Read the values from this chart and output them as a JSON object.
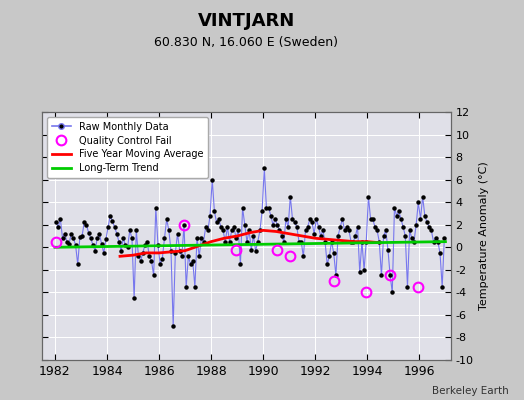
{
  "title": "VINTJARN",
  "subtitle": "60.830 N, 16.060 E (Sweden)",
  "ylabel": "Temperature Anomaly (°C)",
  "credit": "Berkeley Earth",
  "ylim": [
    -10,
    12
  ],
  "yticks": [
    -10,
    -8,
    -6,
    -4,
    -2,
    0,
    2,
    4,
    6,
    8,
    10,
    12
  ],
  "xlim": [
    1981.5,
    1997.2
  ],
  "xticks": [
    1982,
    1984,
    1986,
    1988,
    1990,
    1992,
    1994,
    1996
  ],
  "bg_color": "#c8c8c8",
  "plot_bg_color": "#e0e0e8",
  "grid_color": "white",
  "line_color": "#7777ee",
  "dot_color": "black",
  "ma_color": "red",
  "trend_color": "#00cc00",
  "qc_color": "magenta",
  "raw_data": {
    "times": [
      1982.042,
      1982.125,
      1982.208,
      1982.292,
      1982.375,
      1982.458,
      1982.542,
      1982.625,
      1982.708,
      1982.792,
      1982.875,
      1982.958,
      1983.042,
      1983.125,
      1983.208,
      1983.292,
      1983.375,
      1983.458,
      1983.542,
      1983.625,
      1983.708,
      1983.792,
      1983.875,
      1983.958,
      1984.042,
      1984.125,
      1984.208,
      1984.292,
      1984.375,
      1984.458,
      1984.542,
      1984.625,
      1984.708,
      1984.792,
      1984.875,
      1984.958,
      1985.042,
      1985.125,
      1985.208,
      1985.292,
      1985.375,
      1985.458,
      1985.542,
      1985.625,
      1985.708,
      1985.792,
      1985.875,
      1985.958,
      1986.042,
      1986.125,
      1986.208,
      1986.292,
      1986.375,
      1986.458,
      1986.542,
      1986.625,
      1986.708,
      1986.792,
      1986.875,
      1986.958,
      1987.042,
      1987.125,
      1987.208,
      1987.292,
      1987.375,
      1987.458,
      1987.542,
      1987.625,
      1987.708,
      1987.792,
      1987.875,
      1987.958,
      1988.042,
      1988.125,
      1988.208,
      1988.292,
      1988.375,
      1988.458,
      1988.542,
      1988.625,
      1988.708,
      1988.792,
      1988.875,
      1988.958,
      1989.042,
      1989.125,
      1989.208,
      1989.292,
      1989.375,
      1989.458,
      1989.542,
      1989.625,
      1989.708,
      1989.792,
      1989.875,
      1989.958,
      1990.042,
      1990.125,
      1990.208,
      1990.292,
      1990.375,
      1990.458,
      1990.542,
      1990.625,
      1990.708,
      1990.792,
      1990.875,
      1990.958,
      1991.042,
      1991.125,
      1991.208,
      1991.292,
      1991.375,
      1991.458,
      1991.542,
      1991.625,
      1991.708,
      1991.792,
      1991.875,
      1991.958,
      1992.042,
      1992.125,
      1992.208,
      1992.292,
      1992.375,
      1992.458,
      1992.542,
      1992.625,
      1992.708,
      1992.792,
      1992.875,
      1992.958,
      1993.042,
      1993.125,
      1993.208,
      1993.292,
      1993.375,
      1993.458,
      1993.542,
      1993.625,
      1993.708,
      1993.792,
      1993.875,
      1993.958,
      1994.042,
      1994.125,
      1994.208,
      1994.292,
      1994.375,
      1994.458,
      1994.542,
      1994.625,
      1994.708,
      1994.792,
      1994.875,
      1994.958,
      1995.042,
      1995.125,
      1995.208,
      1995.292,
      1995.375,
      1995.458,
      1995.542,
      1995.625,
      1995.708,
      1995.792,
      1995.875,
      1995.958,
      1996.042,
      1996.125,
      1996.208,
      1996.292,
      1996.375,
      1996.458,
      1996.542,
      1996.625,
      1996.708,
      1996.792,
      1996.875,
      1996.958
    ],
    "values": [
      2.2,
      1.8,
      2.5,
      0.8,
      1.2,
      0.5,
      0.3,
      1.2,
      0.8,
      0.2,
      -1.5,
      0.9,
      1.0,
      2.2,
      2.0,
      1.3,
      0.8,
      0.2,
      -0.3,
      0.8,
      1.2,
      0.3,
      -0.5,
      0.7,
      1.8,
      2.8,
      2.3,
      1.8,
      1.2,
      0.5,
      -0.3,
      0.8,
      0.2,
      0.0,
      1.5,
      0.8,
      -4.5,
      1.5,
      -0.8,
      -1.2,
      -0.5,
      0.2,
      0.5,
      -0.8,
      -1.2,
      -2.5,
      3.5,
      0.2,
      -1.5,
      -1.0,
      0.8,
      2.5,
      1.5,
      -0.3,
      -7.0,
      -0.5,
      1.2,
      -0.3,
      -0.8,
      2.0,
      -3.5,
      -0.8,
      -1.5,
      -1.2,
      -3.5,
      0.8,
      -0.8,
      0.8,
      0.5,
      1.8,
      1.5,
      2.8,
      6.0,
      3.2,
      2.2,
      2.5,
      1.8,
      1.5,
      0.5,
      1.8,
      0.5,
      1.5,
      1.8,
      0.8,
      1.5,
      -1.5,
      3.5,
      2.0,
      0.5,
      1.5,
      -0.2,
      1.0,
      -0.3,
      0.5,
      1.5,
      3.2,
      7.0,
      3.5,
      3.5,
      2.8,
      2.0,
      2.5,
      2.0,
      1.5,
      1.0,
      0.5,
      2.5,
      1.8,
      4.5,
      2.5,
      2.2,
      1.8,
      0.5,
      0.5,
      -0.8,
      1.5,
      1.8,
      2.5,
      2.2,
      1.2,
      2.5,
      1.8,
      1.0,
      1.5,
      0.5,
      -1.5,
      -0.8,
      0.5,
      -0.5,
      -2.5,
      1.0,
      1.8,
      2.5,
      1.5,
      1.8,
      1.5,
      0.5,
      0.5,
      1.0,
      1.8,
      -2.2,
      0.5,
      -2.0,
      0.5,
      4.5,
      2.5,
      2.5,
      1.8,
      1.5,
      0.5,
      -2.5,
      1.0,
      1.5,
      -0.2,
      -2.5,
      -4.0,
      3.5,
      2.8,
      3.2,
      2.5,
      1.8,
      1.0,
      -3.5,
      1.5,
      0.8,
      0.5,
      2.0,
      4.0,
      2.5,
      4.5,
      2.8,
      2.2,
      1.8,
      1.5,
      0.5,
      0.8,
      0.5,
      -0.5,
      -3.5,
      0.8
    ]
  },
  "qc_fail_times": [
    1982.042,
    1986.958,
    1988.958,
    1990.542,
    1991.042,
    1992.708,
    1993.958,
    1994.875,
    1995.958
  ],
  "qc_fail_values": [
    0.5,
    2.0,
    -0.2,
    -0.2,
    -0.8,
    -3.0,
    -4.0,
    -2.5,
    -3.5
  ],
  "moving_avg_times": [
    1984.5,
    1985.0,
    1985.5,
    1986.0,
    1986.5,
    1987.0,
    1987.5,
    1988.0,
    1988.5,
    1989.0,
    1989.5,
    1990.0,
    1990.5,
    1991.0,
    1991.5,
    1992.0,
    1992.5,
    1993.0,
    1993.5,
    1994.0,
    1994.5
  ],
  "moving_avg_values": [
    -0.8,
    -0.7,
    -0.5,
    -0.5,
    -0.4,
    -0.3,
    0.1,
    0.5,
    0.8,
    1.0,
    1.3,
    1.5,
    1.4,
    1.2,
    1.0,
    0.8,
    0.7,
    0.6,
    0.5,
    0.5,
    0.4
  ],
  "trend_x": [
    1982.0,
    1997.0
  ],
  "trend_y": [
    0.0,
    0.5
  ]
}
